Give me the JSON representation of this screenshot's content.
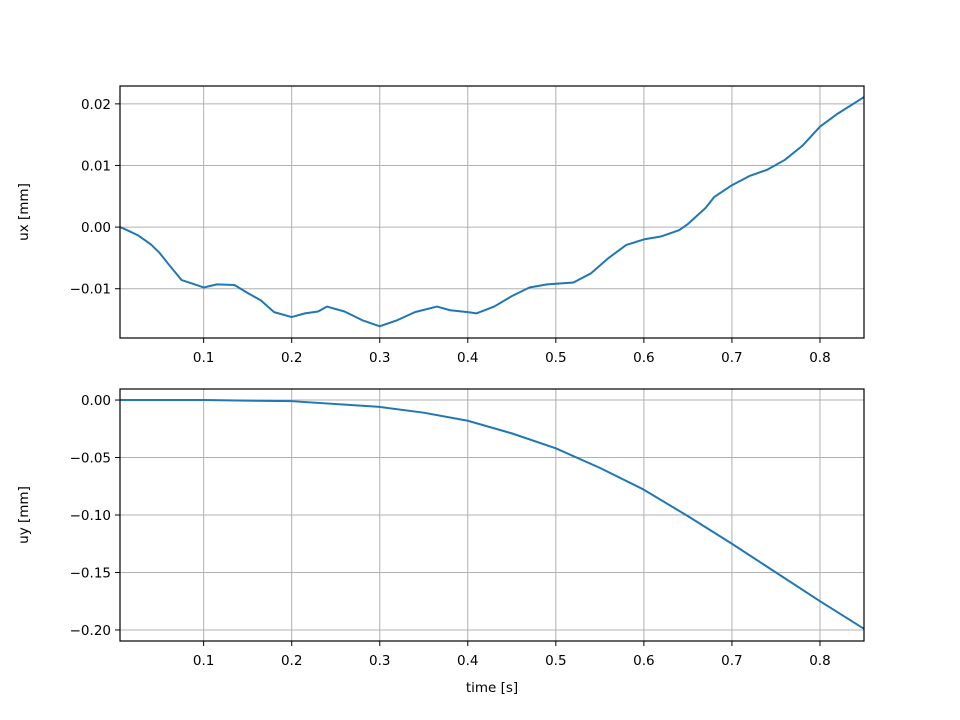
{
  "chart_data": [
    {
      "type": "line",
      "ylabel": "ux [mm]",
      "grid": true,
      "xlim": [
        0.005,
        0.85
      ],
      "xticks": [
        0.1,
        0.2,
        0.3,
        0.4,
        0.5,
        0.6,
        0.7,
        0.8
      ],
      "ylim": [
        -0.018,
        0.0229
      ],
      "yticks": [
        {
          "value": -0.01,
          "label": "−0.01"
        },
        {
          "value": 0,
          "label": "0.00"
        },
        0.01,
        0.02
      ],
      "x": [
        0.005,
        0.01,
        0.025,
        0.04,
        0.05,
        0.06,
        0.075,
        0.09,
        0.1,
        0.115,
        0.135,
        0.15,
        0.165,
        0.18,
        0.2,
        0.215,
        0.23,
        0.24,
        0.26,
        0.28,
        0.3,
        0.32,
        0.34,
        0.365,
        0.38,
        0.4,
        0.41,
        0.43,
        0.45,
        0.47,
        0.49,
        0.52,
        0.54,
        0.56,
        0.58,
        0.6,
        0.62,
        0.64,
        0.65,
        0.67,
        0.68,
        0.7,
        0.72,
        0.74,
        0.76,
        0.78,
        0.8,
        0.82,
        0.85
      ],
      "series": [
        {
          "name": "ux",
          "color": "#1f77b4",
          "values": [
            0.0,
            -0.0003,
            -0.0013,
            -0.0028,
            -0.0042,
            -0.006,
            -0.0086,
            -0.0093,
            -0.0098,
            -0.0093,
            -0.0094,
            -0.0107,
            -0.0119,
            -0.0138,
            -0.0146,
            -0.014,
            -0.0137,
            -0.0129,
            -0.0137,
            -0.0151,
            -0.0161,
            -0.0151,
            -0.0138,
            -0.0129,
            -0.0135,
            -0.0138,
            -0.014,
            -0.0129,
            -0.0112,
            -0.0098,
            -0.0093,
            -0.009,
            -0.0075,
            -0.005,
            -0.0029,
            -0.002,
            -0.0015,
            -0.0005,
            0.0005,
            0.0031,
            0.0049,
            0.0068,
            0.0083,
            0.0093,
            0.0109,
            0.0132,
            0.0163,
            0.0184,
            0.0211
          ]
        }
      ]
    },
    {
      "type": "line",
      "xlabel": "time [s]",
      "ylabel": "uy [mm]",
      "grid": true,
      "xlim": [
        0.005,
        0.85
      ],
      "xticks": [
        0.1,
        0.2,
        0.3,
        0.4,
        0.5,
        0.6,
        0.7,
        0.8
      ],
      "ylim": [
        -0.2096,
        0.0096
      ],
      "yticks": [
        {
          "value": -0.2,
          "label": "−0.20"
        },
        {
          "value": -0.15,
          "label": "−0.15"
        },
        {
          "value": -0.1,
          "label": "−0.10"
        },
        {
          "value": -0.05,
          "label": "−0.05"
        },
        {
          "value": 0,
          "label": "0.00"
        }
      ],
      "x": [
        0.005,
        0.1,
        0.2,
        0.3,
        0.35,
        0.4,
        0.45,
        0.5,
        0.55,
        0.6,
        0.65,
        0.7,
        0.75,
        0.8,
        0.85
      ],
      "series": [
        {
          "name": "uy",
          "color": "#1f77b4",
          "values": [
            0,
            0,
            -0.001,
            -0.006,
            -0.011,
            -0.018,
            -0.029,
            -0.042,
            -0.059,
            -0.078,
            -0.101,
            -0.125,
            -0.15,
            -0.175,
            -0.199
          ]
        }
      ]
    }
  ]
}
